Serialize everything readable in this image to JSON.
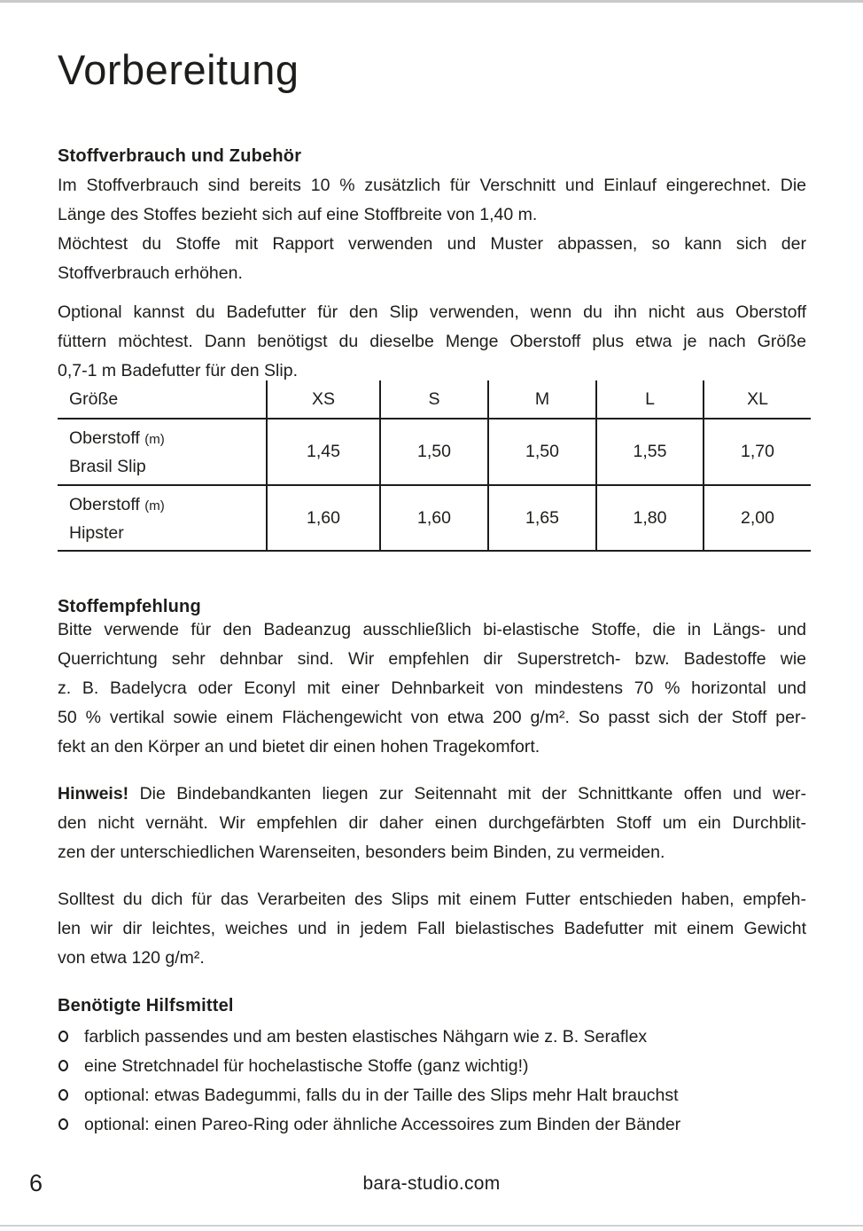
{
  "page": {
    "title": "Vorbereitung",
    "number": "6",
    "website": "bara-studio.com"
  },
  "colors": {
    "text": "#1d1d1b",
    "rule": "#1d1d1b",
    "edge_bar": "#c9c9cb"
  },
  "sections": {
    "stoffverbrauch": {
      "heading": "Stoffverbrauch und Zubehör",
      "para1_lines": [
        "Im Stoffverbrauch sind bereits 10 % zusätzlich für Verschnitt und Einlauf eingerechnet. Die",
        "Länge des Stoffes bezieht sich auf eine Stoffbreite von 1,40 m.",
        "Möchtest du Stoffe mit Rapport verwenden und Muster abpassen, so kann sich der",
        "Stoffverbrauch erhöhen."
      ],
      "para2_lines": [
        "Optional kannst du Badefutter für den Slip verwenden, wenn du ihn nicht aus Oberstoff",
        "füttern möchtest. Dann benötigst du dieselbe Menge Oberstoff plus etwa je nach Größe",
        "0,7-1 m Badefutter für den Slip."
      ]
    },
    "table": {
      "header": [
        "Größe",
        "XS",
        "S",
        "M",
        "L",
        "XL"
      ],
      "rows": [
        {
          "label_main": "Oberstoff",
          "label_unit": "(m)",
          "label_sub": "Brasil Slip",
          "values": [
            "1,45",
            "1,50",
            "1,50",
            "1,55",
            "1,70"
          ]
        },
        {
          "label_main": "Oberstoff",
          "label_unit": "(m)",
          "label_sub": "Hipster",
          "values": [
            "1,60",
            "1,60",
            "1,65",
            "1,80",
            "2,00"
          ]
        }
      ]
    },
    "stoffempfehlung": {
      "heading": "Stoffempfehlung",
      "para_lines": [
        "Bitte verwende für den Badeanzug ausschließlich bi-elastische Stoffe, die in Längs- und",
        "Querrichtung sehr dehnbar sind. Wir empfehlen dir Superstretch- bzw. Badestoffe wie",
        "z. B. Badelycra oder Econyl mit einer Dehnbarkeit von mindestens 70 % horizontal und",
        "50 % vertikal sowie einem Flächengewicht von etwa 200 g/m². So passt sich der Stoff per-",
        "fekt an den Körper an und bietet dir einen hohen Tragekomfort."
      ]
    },
    "hinweis": {
      "lead": "Hinweis!",
      "line1_rest": "Die Bindebandkanten liegen zur Seitennaht mit der Schnittkante offen und wer-",
      "line2": "den nicht vernäht. Wir empfehlen dir daher einen durchgefärbten Stoff um ein Durchblit-",
      "line3": "zen der unterschiedlichen Warenseiten, besonders beim Binden, zu vermeiden."
    },
    "futter": {
      "lines": [
        "Solltest du dich für das Verarbeiten des Slips mit einem Futter entschieden haben, empfeh-",
        "len wir dir leichtes, weiches und in jedem Fall bielastisches Badefutter mit einem Gewicht",
        "von etwa 120 g/m²."
      ]
    },
    "hilfsmittel": {
      "heading": "Benötigte Hilfsmittel",
      "items": [
        "farblich passendes und am besten elastisches Nähgarn wie z. B. Seraflex",
        "eine Stretchnadel für hochelastische Stoffe (ganz wichtig!)",
        "optional: etwas Badegummi, falls du in der Taille des Slips mehr Halt brauchst",
        "optional: einen Pareo-Ring oder ähnliche Accessoires zum Binden der Bänder"
      ]
    }
  }
}
